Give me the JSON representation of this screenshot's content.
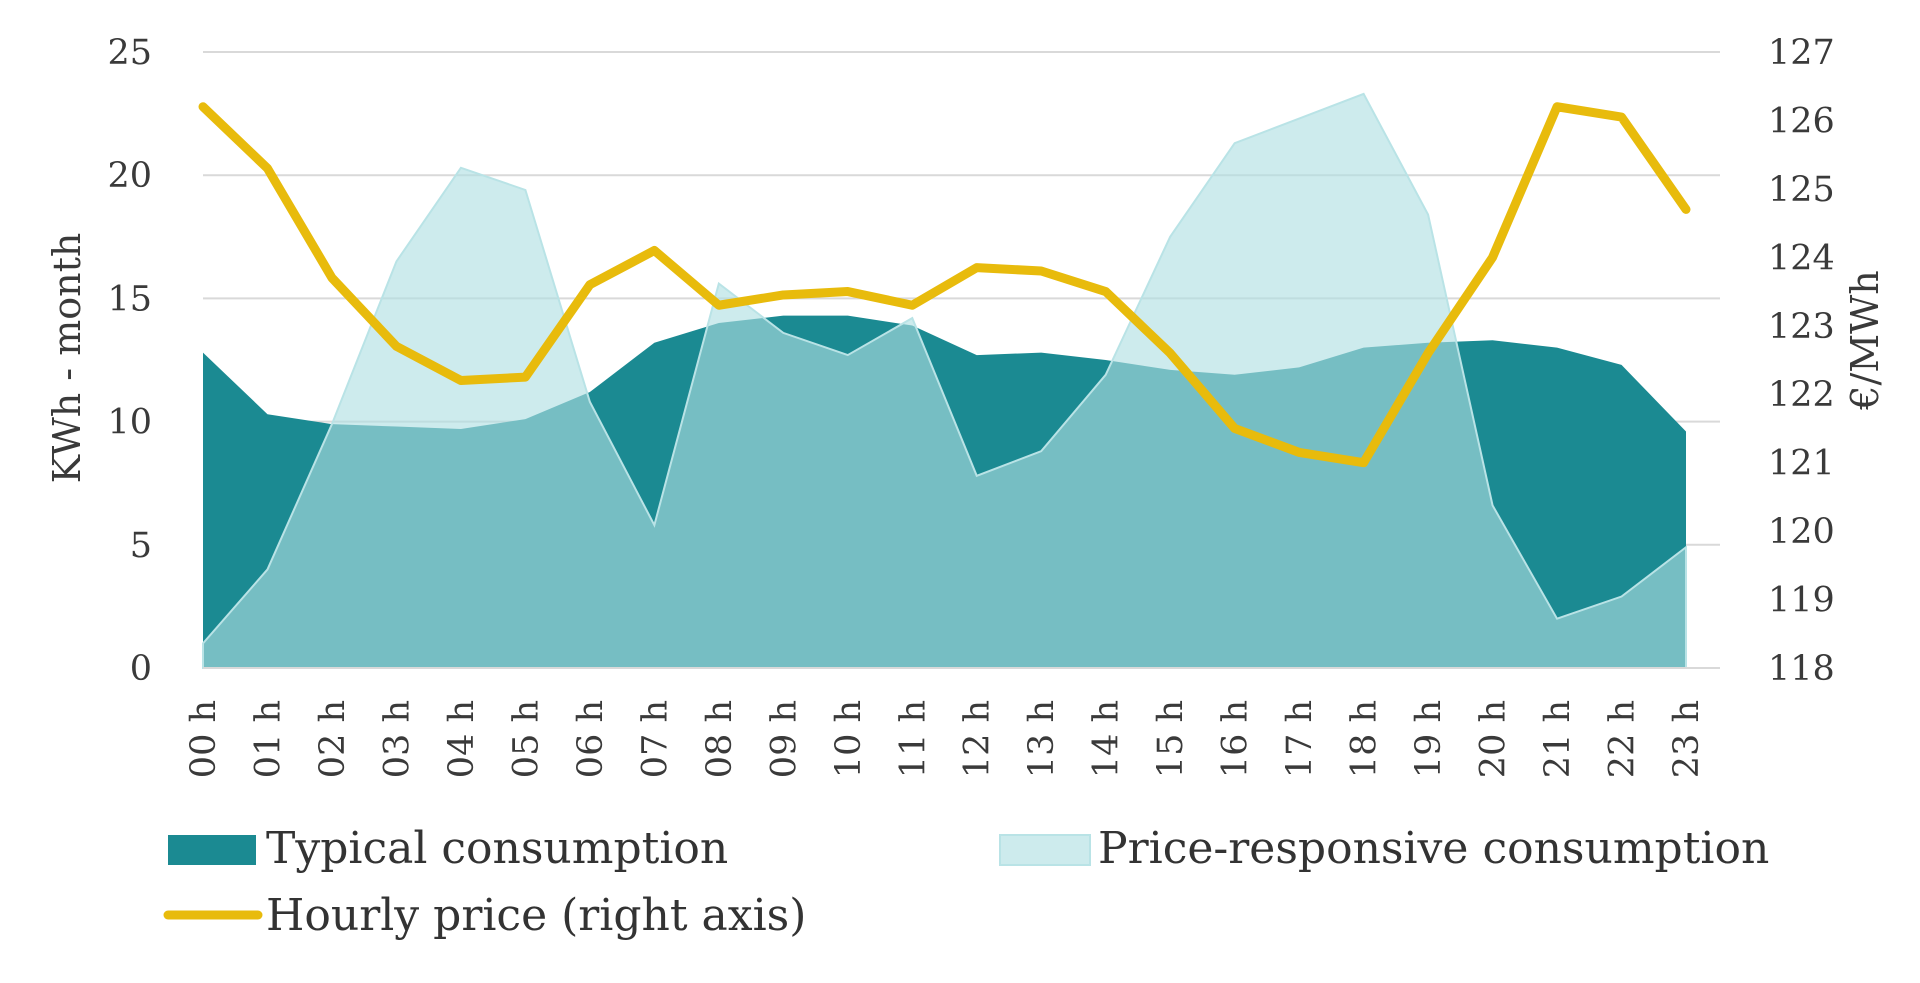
{
  "chart_data": {
    "type": "area",
    "categories": [
      "00 h",
      "01 h",
      "02 h",
      "03 h",
      "04 h",
      "05 h",
      "06 h",
      "07 h",
      "08 h",
      "09 h",
      "10 h",
      "11 h",
      "12 h",
      "13 h",
      "14 h",
      "15 h",
      "16 h",
      "17 h",
      "18 h",
      "19 h",
      "20 h",
      "21 h",
      "22 h",
      "23 h"
    ],
    "ylabel": "KWh - month",
    "y2label": "€/MWh",
    "ylim": [
      0,
      25
    ],
    "yticks": [
      "0",
      "5",
      "10",
      "15",
      "20",
      "25"
    ],
    "y2lim": [
      118,
      127
    ],
    "y2ticks": [
      "118",
      "119",
      "120",
      "121",
      "122",
      "123",
      "124",
      "125",
      "126",
      "127"
    ],
    "grid": true,
    "legend_position": "bottom",
    "series": [
      {
        "name": "Typical consumption",
        "kind": "area",
        "axis": "left",
        "color": "#1b8a92",
        "values": [
          12.8,
          10.3,
          9.9,
          9.8,
          9.7,
          10.1,
          11.2,
          13.2,
          14.0,
          14.3,
          14.3,
          13.9,
          12.7,
          12.8,
          12.5,
          12.1,
          11.9,
          12.2,
          13.0,
          13.2,
          13.3,
          13.0,
          12.3,
          9.6
        ]
      },
      {
        "name": "Price-responsive consumption",
        "kind": "area",
        "axis": "left",
        "color": "#aedfe2",
        "values": [
          1.0,
          4.0,
          9.9,
          16.5,
          20.3,
          19.4,
          10.8,
          5.8,
          15.6,
          13.6,
          12.7,
          14.2,
          7.8,
          8.8,
          11.9,
          17.5,
          21.3,
          22.3,
          23.3,
          18.4,
          6.6,
          2.0,
          2.9,
          4.9
        ]
      },
      {
        "name": "Hourly price (right axis)",
        "kind": "line",
        "axis": "right",
        "color": "#e8bb0c",
        "values": [
          126.2,
          125.3,
          123.7,
          122.7,
          122.2,
          122.25,
          123.6,
          124.1,
          123.3,
          123.45,
          123.5,
          123.3,
          123.85,
          123.8,
          123.5,
          122.6,
          121.5,
          121.15,
          121.0,
          122.6,
          124.0,
          126.2,
          126.05,
          124.7
        ]
      }
    ]
  }
}
